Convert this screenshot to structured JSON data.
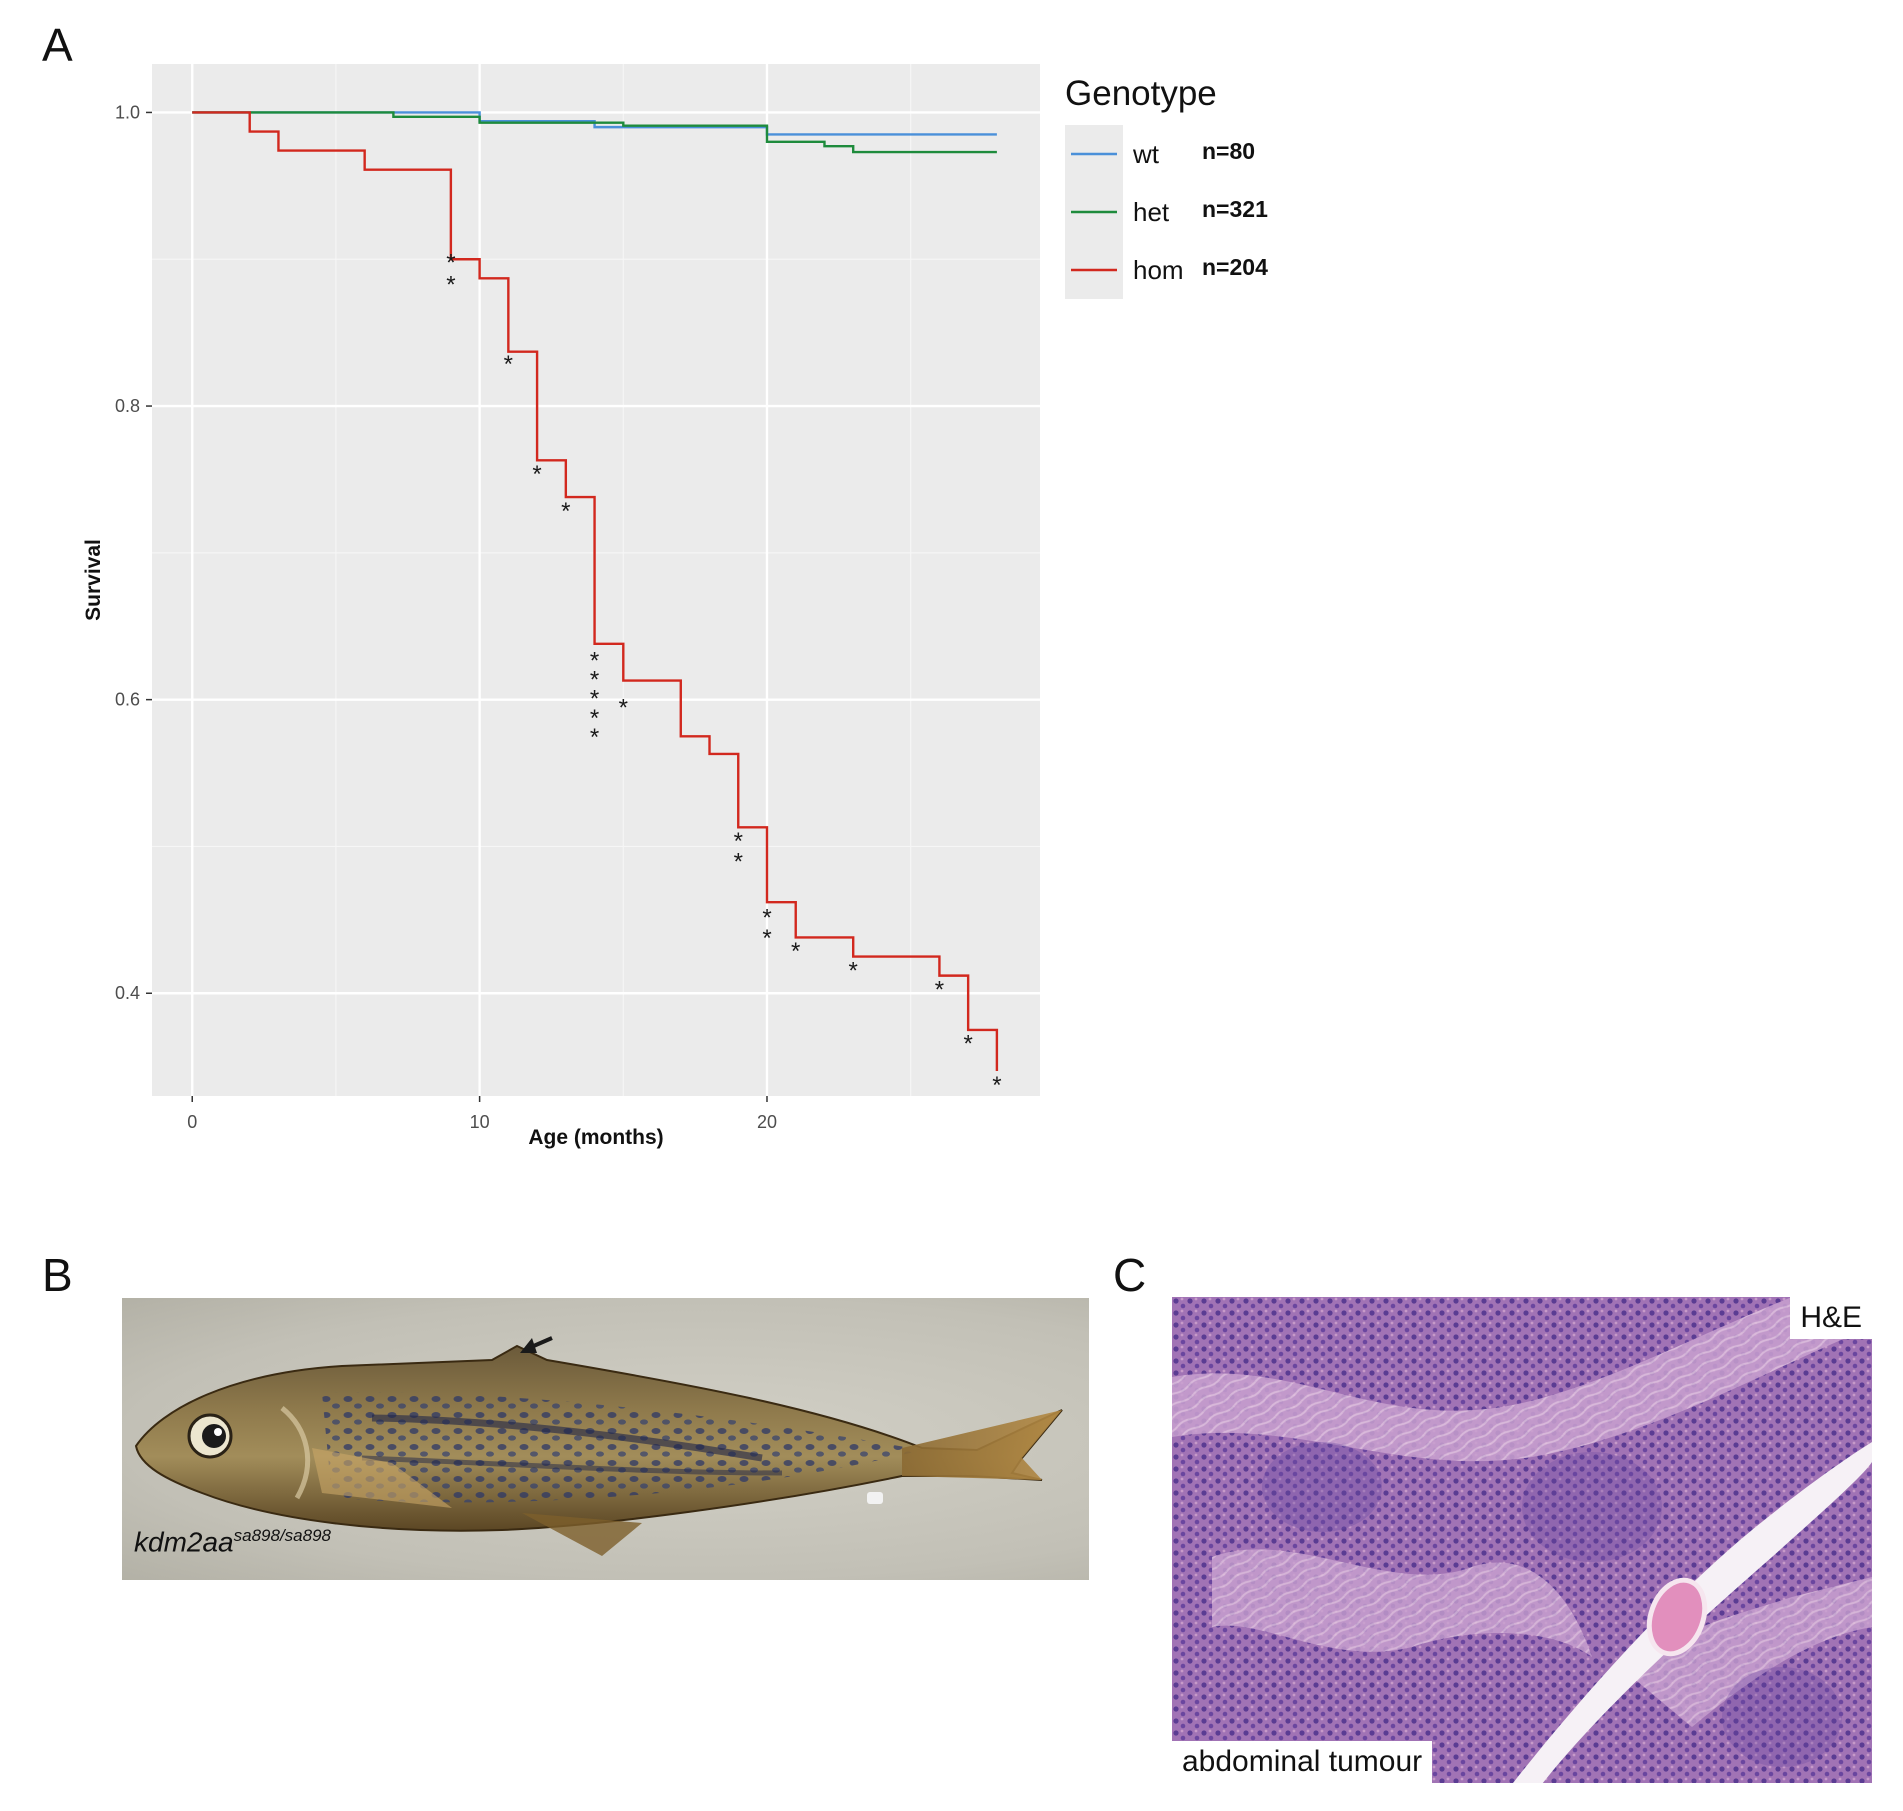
{
  "panels": {
    "a_letter": "A",
    "b_letter": "B",
    "c_letter": "C"
  },
  "chart_data": {
    "type": "line",
    "step": true,
    "xlabel": "Age (months)",
    "ylabel": "Survival",
    "xlim": [
      -1.4,
      29.5
    ],
    "ylim": [
      0.33,
      1.033
    ],
    "x_ticks": [
      0,
      10,
      20
    ],
    "y_ticks": [
      0.4,
      0.6,
      0.8,
      1.0
    ],
    "y_tick_labels": [
      "0.4",
      "0.6",
      "0.8",
      "1.0"
    ],
    "grid": true,
    "panel_background": "#ebebeb",
    "legend": {
      "title": "Genotype",
      "placement": "right"
    },
    "series": [
      {
        "name": "wt",
        "n_label": "n=80",
        "color": "#4a90d9",
        "x": [
          0,
          10,
          14,
          20,
          28
        ],
        "y": [
          1.0,
          0.994,
          0.99,
          0.985,
          0.985
        ]
      },
      {
        "name": "het",
        "n_label": "n=321",
        "color": "#1e8b3c",
        "x": [
          0,
          7,
          10,
          15,
          20,
          22,
          23,
          28
        ],
        "y": [
          1.0,
          0.997,
          0.993,
          0.991,
          0.98,
          0.977,
          0.973,
          0.973
        ]
      },
      {
        "name": "hom",
        "n_label": "n=204",
        "color": "#d2281e",
        "x": [
          0,
          2,
          3,
          6,
          9,
          10,
          11,
          12,
          13,
          14,
          15,
          17,
          18,
          19,
          20,
          21,
          23,
          26,
          27,
          28
        ],
        "y": [
          1.0,
          0.987,
          0.974,
          0.961,
          0.9,
          0.887,
          0.837,
          0.763,
          0.738,
          0.638,
          0.613,
          0.575,
          0.563,
          0.513,
          0.462,
          0.438,
          0.425,
          0.412,
          0.375,
          0.347
        ]
      }
    ],
    "annotations": [
      {
        "text": "*",
        "x": 9.0,
        "y": 0.899
      },
      {
        "text": "*",
        "x": 9.0,
        "y": 0.884
      },
      {
        "text": "*",
        "x": 11.0,
        "y": 0.83
      },
      {
        "text": "*",
        "x": 12.0,
        "y": 0.755
      },
      {
        "text": "*",
        "x": 13.0,
        "y": 0.73
      },
      {
        "text": "*",
        "x": 14.0,
        "y": 0.628
      },
      {
        "text": "*",
        "x": 14.0,
        "y": 0.615
      },
      {
        "text": "*",
        "x": 14.0,
        "y": 0.602
      },
      {
        "text": "*",
        "x": 14.0,
        "y": 0.589
      },
      {
        "text": "*",
        "x": 14.0,
        "y": 0.576
      },
      {
        "text": "*",
        "x": 15.0,
        "y": 0.596
      },
      {
        "text": "*",
        "x": 19.0,
        "y": 0.505
      },
      {
        "text": "*",
        "x": 19.0,
        "y": 0.491
      },
      {
        "text": "*",
        "x": 20.0,
        "y": 0.453
      },
      {
        "text": "*",
        "x": 20.0,
        "y": 0.439
      },
      {
        "text": "*",
        "x": 21.0,
        "y": 0.43
      },
      {
        "text": "*",
        "x": 23.0,
        "y": 0.417
      },
      {
        "text": "*",
        "x": 26.0,
        "y": 0.404
      },
      {
        "text": "*",
        "x": 27.0,
        "y": 0.367
      },
      {
        "text": "*",
        "x": 28.0,
        "y": 0.339
      }
    ]
  },
  "panel_b": {
    "caption_main": "kdm2aa",
    "caption_sup": "sa898/sa898",
    "arrow_icon": "arrow-icon"
  },
  "panel_c": {
    "stain_label": "H&E",
    "tissue_label": "abdominal tumour"
  }
}
